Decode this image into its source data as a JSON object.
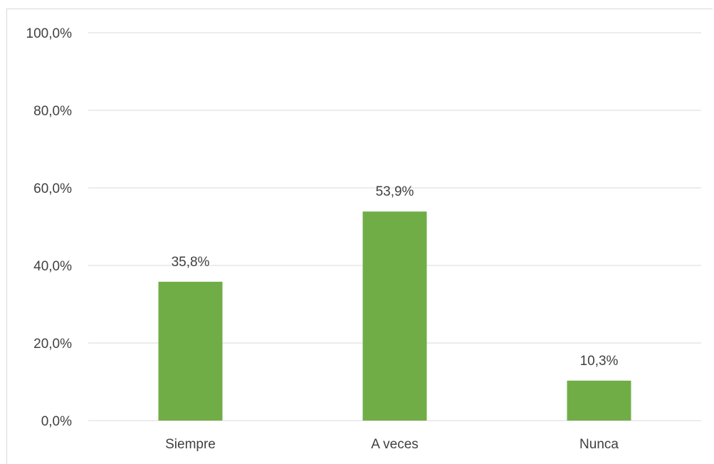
{
  "chart_data": {
    "type": "bar",
    "categories": [
      "Siempre",
      "A veces",
      "Nunca"
    ],
    "values": [
      35.8,
      53.9,
      10.3
    ],
    "data_labels": [
      "35,8%",
      "53,9%",
      "10,3%"
    ],
    "ylim": [
      0,
      100
    ],
    "yticks": [
      0,
      20,
      40,
      60,
      80,
      100
    ],
    "ytick_labels": [
      "0,0%",
      "20,0%",
      "40,0%",
      "60,0%",
      "80,0%",
      "100,0%"
    ],
    "bar_color": "#70ad47",
    "grid_color": "#d9d9d9",
    "grid": true,
    "legend": "none"
  }
}
